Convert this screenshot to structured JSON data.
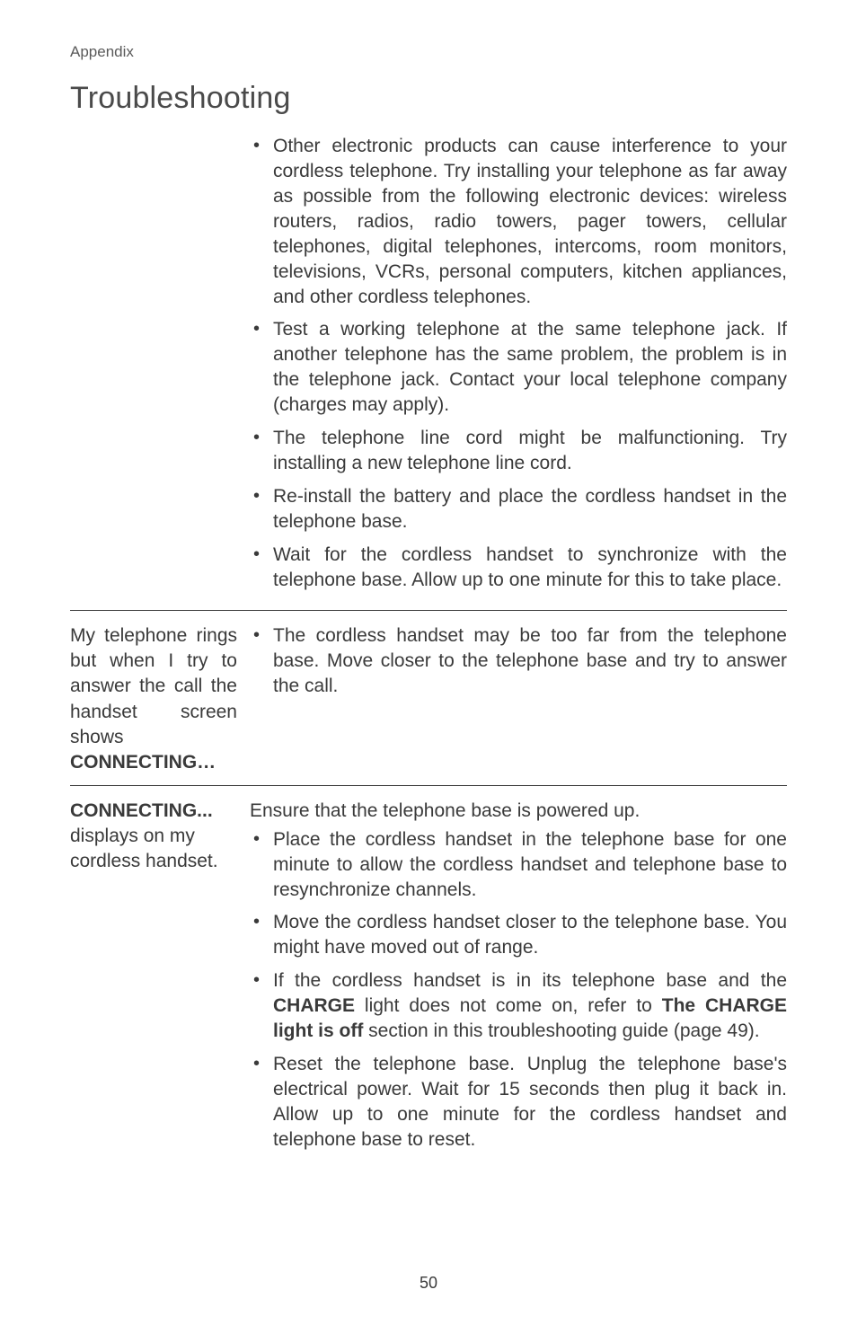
{
  "header": {
    "appendix": "Appendix",
    "title": "Troubleshooting"
  },
  "sections": [
    {
      "left": "",
      "intro": "",
      "items": [
        "Other electronic products can cause interference to your cordless telephone. Try installing your telephone as far away as possible from the following electronic devices: wireless routers, radios, radio towers, pager towers, cellular telephones, digital telephones, intercoms, room monitors, televisions, VCRs, personal computers, kitchen appliances, and other cordless telephones.",
        "Test a working telephone at the same telephone jack. If another telephone has the same problem, the problem is in the telephone jack. Contact your local telephone company (charges may apply).",
        "The telephone line cord might be malfunctioning. Try installing a new telephone line cord.",
        "Re-install the battery and place the cordless handset in the telephone base.",
        "Wait for the cordless handset to synchronize with the telephone base. Allow up to one minute for this to take place."
      ]
    },
    {
      "left_html": "My telephone rings but when I try to answer the call the handset screen shows <span class=\"bold\">CONNECTING…</span>",
      "intro": "",
      "items": [
        "The cordless handset may be too far from the telephone base. Move closer to the telephone base and try to answer the call."
      ]
    },
    {
      "left_html": "<span class=\"bold\">CONNECTING...</span> displays on my cordless handset.",
      "intro": "Ensure that the telephone base is powered up.",
      "items": [
        "Place the cordless handset in the telephone base for one minute to allow the cordless handset and telephone base to resynchronize channels.",
        "Move the cordless handset closer to the telephone base. You might have moved out of range.",
        "If the cordless handset is in its telephone base and the <span class=\"bold\">CHARGE</span> light does not come on, refer to <span class=\"bold\">The CHARGE light is off</span> section in this troubleshooting guide (page 49).",
        "Reset the telephone base. Unplug the telephone base's electrical power. Wait for 15 seconds then plug it back in. Allow up to one minute for the cordless handset and telephone base to reset."
      ]
    }
  ],
  "pageNumber": "50",
  "colors": {
    "text": "#3a3a3a",
    "sub": "#5a5a5a",
    "bg": "#ffffff",
    "rule": "#3a3a3a"
  },
  "typography": {
    "body_pt": 21,
    "appendix_pt": 17,
    "title_pt": 34
  }
}
